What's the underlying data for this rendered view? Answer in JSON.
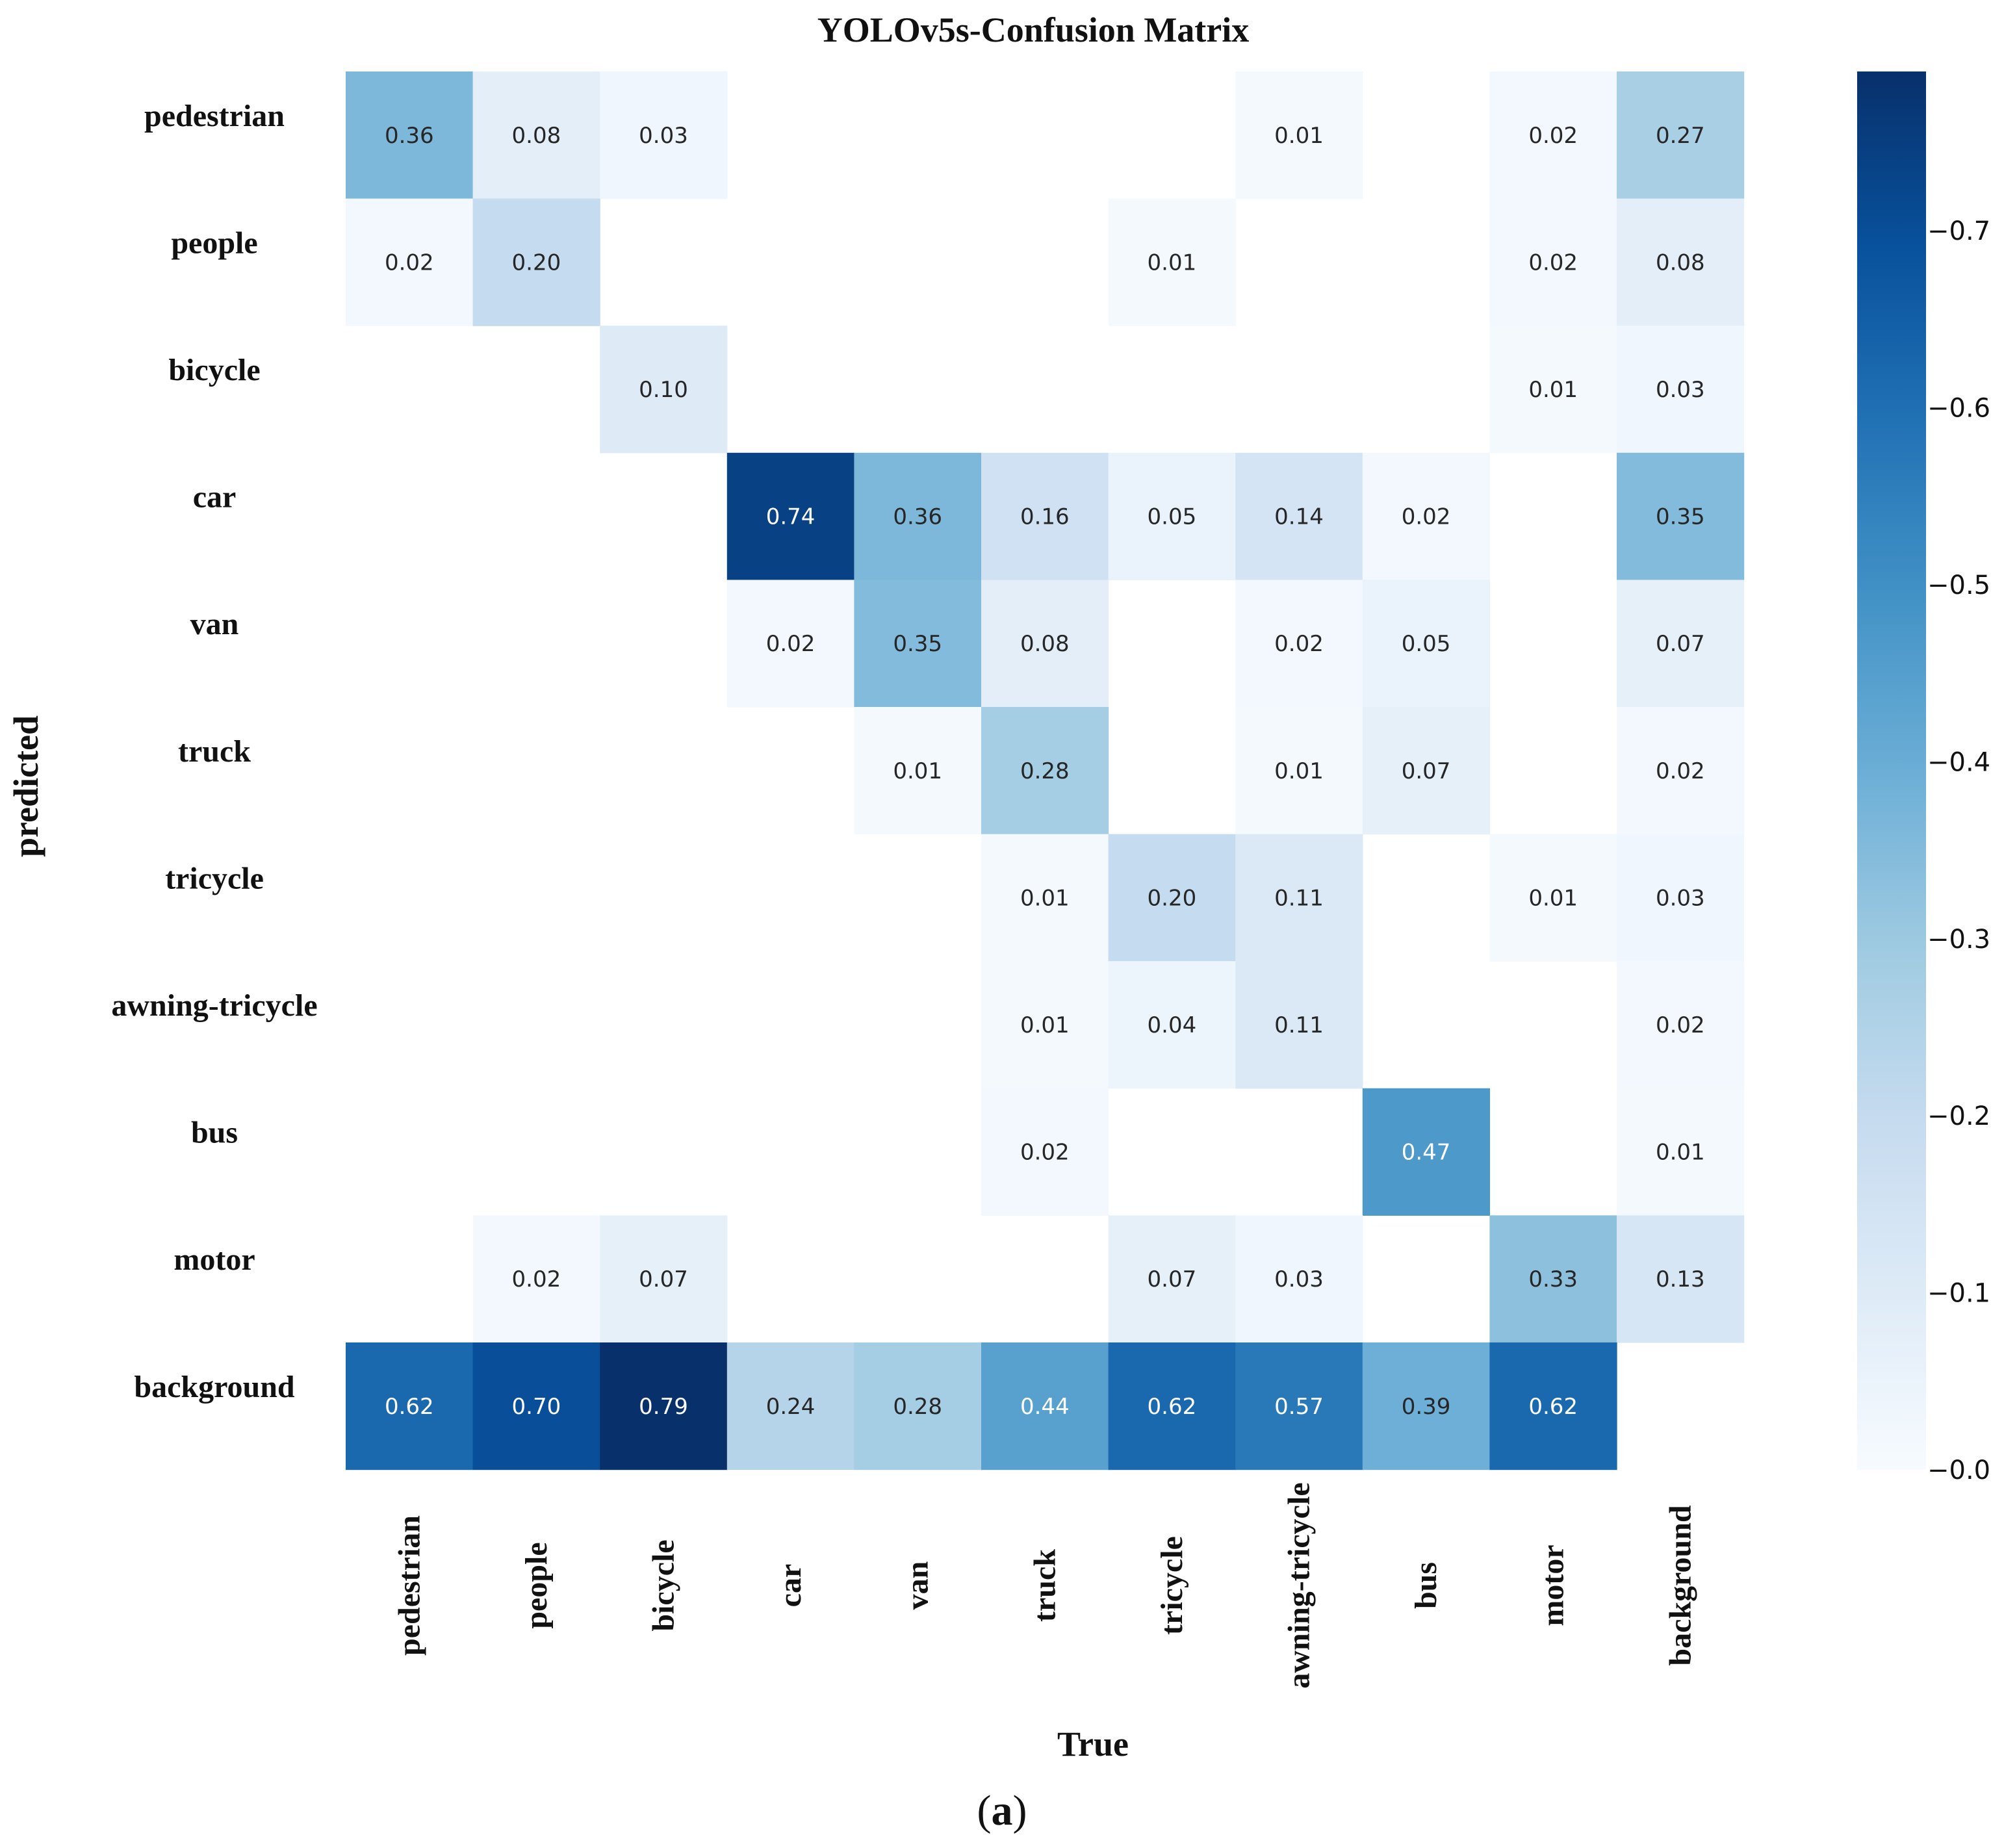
{
  "chart_data": {
    "type": "heatmap",
    "title": "YOLOv5s-Confusion Matrix",
    "xlabel": "True",
    "ylabel": "predicted",
    "caption_letter": "a",
    "colormap": "Blues",
    "row_labels": [
      "pedestrian",
      "people",
      "bicycle",
      "car",
      "van",
      "truck",
      "tricycle",
      "awning-tricycle",
      "bus",
      "motor",
      "background"
    ],
    "col_labels": [
      "pedestrian",
      "people",
      "bicycle",
      "car",
      "van",
      "truck",
      "tricycle",
      "awning-tricycle",
      "bus",
      "motor",
      "background"
    ],
    "values": [
      [
        0.36,
        0.08,
        0.03,
        null,
        null,
        null,
        null,
        0.01,
        null,
        0.02,
        0.27
      ],
      [
        0.02,
        0.2,
        null,
        null,
        null,
        null,
        0.01,
        null,
        null,
        0.02,
        0.08
      ],
      [
        null,
        null,
        0.1,
        null,
        null,
        null,
        null,
        null,
        null,
        0.01,
        0.03
      ],
      [
        null,
        null,
        null,
        0.74,
        0.36,
        0.16,
        0.05,
        0.14,
        0.02,
        null,
        0.35
      ],
      [
        null,
        null,
        null,
        0.02,
        0.35,
        0.08,
        null,
        0.02,
        0.05,
        null,
        0.07
      ],
      [
        null,
        null,
        null,
        null,
        0.01,
        0.28,
        null,
        0.01,
        0.07,
        null,
        0.02
      ],
      [
        null,
        null,
        null,
        null,
        null,
        0.01,
        0.2,
        0.11,
        null,
        0.01,
        0.03
      ],
      [
        null,
        null,
        null,
        null,
        null,
        0.01,
        0.04,
        0.11,
        null,
        null,
        0.02
      ],
      [
        null,
        null,
        null,
        null,
        null,
        0.02,
        null,
        null,
        0.47,
        null,
        0.01
      ],
      [
        null,
        0.02,
        0.07,
        null,
        null,
        null,
        0.07,
        0.03,
        null,
        0.33,
        0.13
      ],
      [
        0.62,
        0.7,
        0.79,
        0.24,
        0.28,
        0.44,
        0.62,
        0.57,
        0.39,
        0.62,
        null
      ]
    ],
    "colorbar": {
      "range": [
        0,
        0.79
      ],
      "ticks": [
        0.0,
        0.1,
        0.2,
        0.3,
        0.4,
        0.5,
        0.6,
        0.7
      ],
      "tick_labels": [
        "−0.0",
        "−0.1",
        "−0.2",
        "−0.3",
        "−0.4",
        "−0.5",
        "−0.6",
        "−0.7"
      ]
    }
  }
}
